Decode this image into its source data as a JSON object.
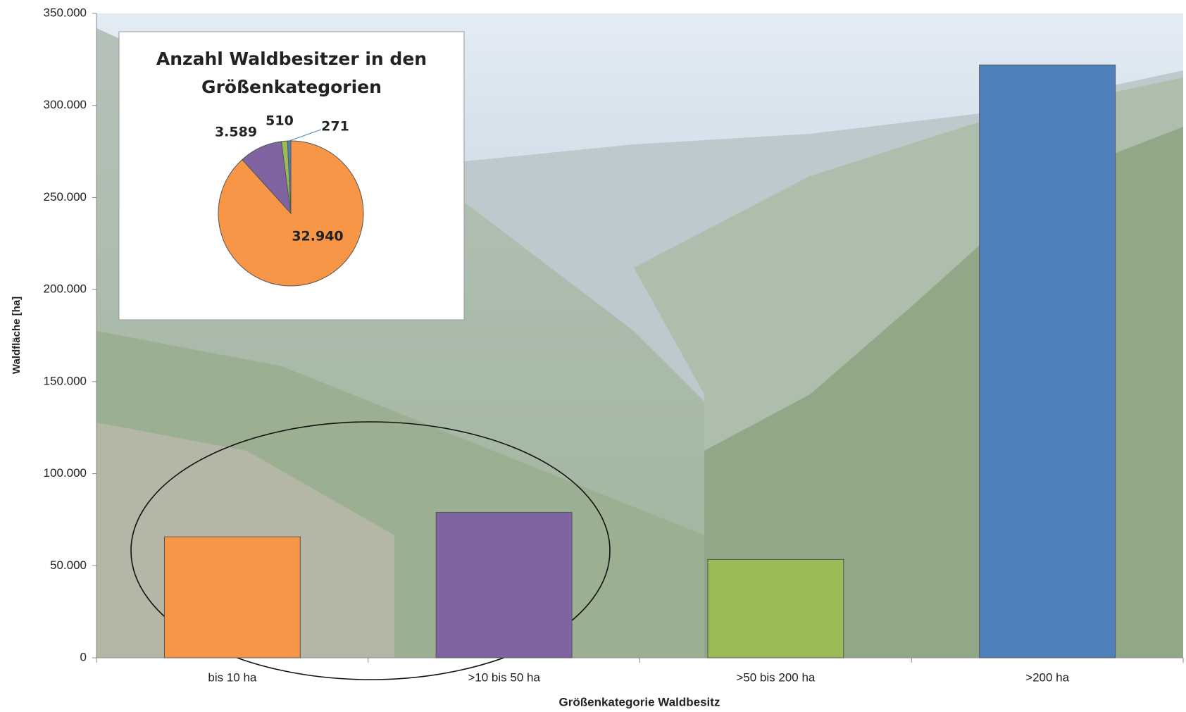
{
  "chart_data": [
    {
      "type": "bar",
      "x_label": "Größenkategorie Waldbesitz",
      "y_label": "Waldfläche [ha]",
      "categories": [
        "bis 10 ha",
        ">10 bis 50 ha",
        ">50 bis 200 ha",
        ">200 ha"
      ],
      "values": [
        65700,
        79000,
        53400,
        322000
      ],
      "colors": [
        "#f79646",
        "#8064a2",
        "#9bbb59",
        "#4f81bd"
      ],
      "ylim": [
        0,
        350000
      ],
      "yticks": [
        0,
        {
          "value": 50000,
          "label": "50.000"
        },
        {
          "value": 100000,
          "label": "100.000"
        },
        {
          "value": 150000,
          "label": "150.000"
        },
        {
          "value": 200000,
          "label": "200.000"
        },
        {
          "value": 250000,
          "label": "250.000"
        },
        {
          "value": 300000,
          "label": "300.000"
        },
        {
          "value": 350000,
          "label": "350.000"
        }
      ]
    },
    {
      "type": "pie",
      "title": "Anzahl Waldbesitzer in den Größenkategorien",
      "values": [
        32940,
        3589,
        510,
        271
      ],
      "value_labels": [
        "32.940",
        "3.589",
        "510",
        "271"
      ],
      "colors": [
        "#f79646",
        "#8064a2",
        "#9bbb59",
        "#4f81bd"
      ]
    }
  ]
}
